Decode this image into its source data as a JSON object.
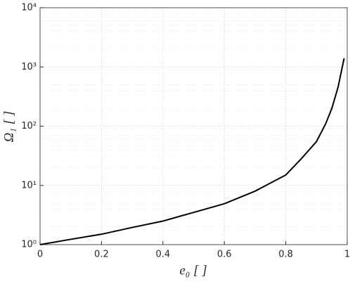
{
  "chart_data": {
    "type": "line",
    "x_label": "e₀ [ ]",
    "y_label": "Ω₁ [ ]",
    "x": [
      0,
      0.1,
      0.2,
      0.3,
      0.4,
      0.5,
      0.6,
      0.7,
      0.8,
      0.85,
      0.9,
      0.93,
      0.95,
      0.97,
      0.99
    ],
    "series": [
      {
        "color": "#000000",
        "values": [
          1,
          1.23,
          1.5,
          1.95,
          2.5,
          3.5,
          4.9,
          8,
          15,
          28,
          55,
          110,
          200,
          450,
          1400
        ]
      }
    ],
    "xlim": [
      0,
      1
    ],
    "xticks": [
      0,
      0.2,
      0.4,
      0.6,
      0.8,
      1
    ],
    "ylim": [
      1,
      10000
    ],
    "y_scale": "log",
    "yticks": [
      {
        "value": 1,
        "label": "10⁰"
      },
      {
        "value": 10,
        "label": "10¹"
      },
      {
        "value": 100,
        "label": "10²"
      },
      {
        "value": 1000,
        "label": "10³"
      },
      {
        "value": 10000,
        "label": "10⁴"
      }
    ],
    "grid": true,
    "minor_grid": true
  }
}
